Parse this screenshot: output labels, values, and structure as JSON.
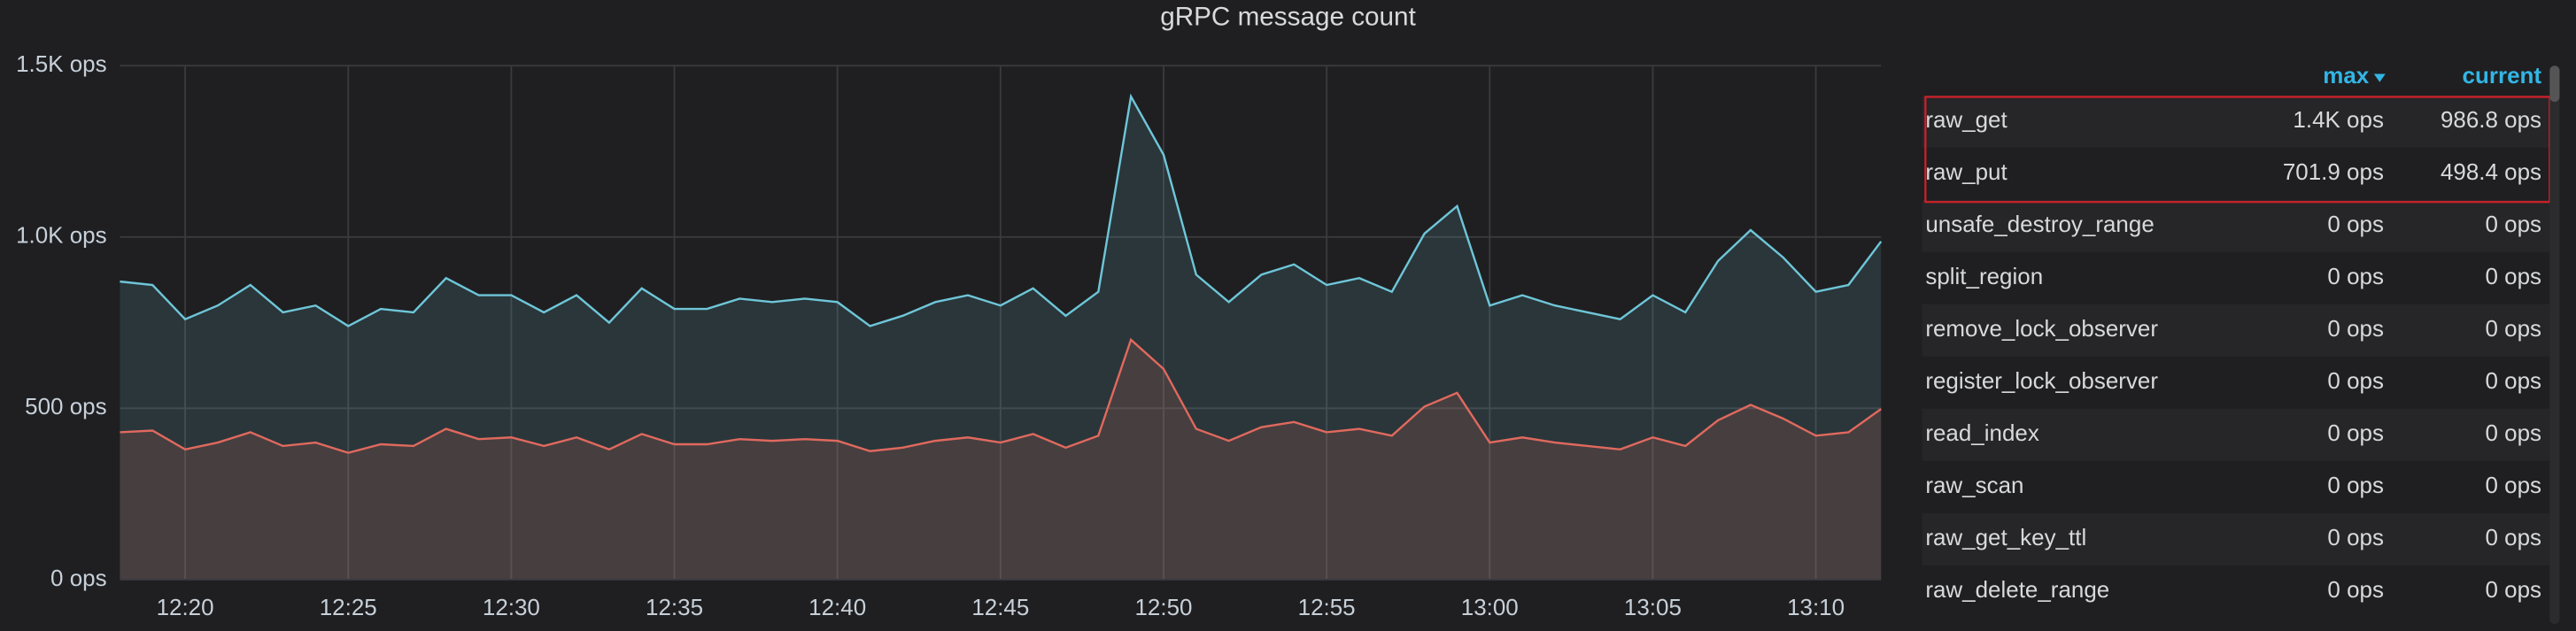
{
  "chart_data": {
    "type": "line",
    "title": "gRPC message count",
    "x": [
      "12:18",
      "12:19",
      "12:20",
      "12:21",
      "12:22",
      "12:23",
      "12:24",
      "12:25",
      "12:26",
      "12:27",
      "12:28",
      "12:29",
      "12:30",
      "12:31",
      "12:32",
      "12:33",
      "12:34",
      "12:35",
      "12:36",
      "12:37",
      "12:38",
      "12:39",
      "12:40",
      "12:41",
      "12:42",
      "12:43",
      "12:44",
      "12:45",
      "12:46",
      "12:47",
      "12:48",
      "12:49",
      "12:50",
      "12:51",
      "12:52",
      "12:53",
      "12:54",
      "12:55",
      "12:56",
      "12:57",
      "12:58",
      "12:59",
      "13:00",
      "13:01",
      "13:02",
      "13:03",
      "13:04",
      "13:05",
      "13:06",
      "13:07",
      "13:08",
      "13:09",
      "13:10",
      "13:11",
      "13:12"
    ],
    "xlim": [
      "12:18",
      "13:12"
    ],
    "xticks": [
      "12:20",
      "12:25",
      "12:30",
      "12:35",
      "12:40",
      "12:45",
      "12:50",
      "12:55",
      "13:00",
      "13:05",
      "13:10"
    ],
    "ylim": [
      0,
      1500
    ],
    "yticks": [
      {
        "value": 0,
        "label": "0 ops"
      },
      {
        "value": 500,
        "label": "500 ops"
      },
      {
        "value": 1000,
        "label": "1.0K ops"
      },
      {
        "value": 1500,
        "label": "1.5K ops"
      }
    ],
    "grid": true,
    "series": [
      {
        "name": "raw_get",
        "color": "#6ec6d8",
        "max": "1.4K ops",
        "current": "986.8 ops",
        "values": [
          870,
          860,
          760,
          800,
          860,
          780,
          800,
          740,
          790,
          780,
          880,
          830,
          830,
          780,
          830,
          750,
          850,
          790,
          790,
          820,
          810,
          820,
          810,
          740,
          770,
          810,
          830,
          800,
          850,
          770,
          840,
          1410,
          1240,
          890,
          810,
          890,
          920,
          860,
          880,
          840,
          1010,
          1090,
          800,
          830,
          800,
          780,
          760,
          830,
          780,
          930,
          1020,
          940,
          840,
          860,
          987
        ]
      },
      {
        "name": "raw_put",
        "color": "#e0695e",
        "max": "701.9 ops",
        "current": "498.4 ops",
        "values": [
          430,
          435,
          380,
          400,
          430,
          390,
          400,
          370,
          395,
          390,
          440,
          410,
          415,
          390,
          415,
          380,
          425,
          395,
          395,
          410,
          405,
          410,
          405,
          375,
          385,
          405,
          415,
          400,
          425,
          385,
          420,
          700,
          615,
          440,
          405,
          445,
          460,
          430,
          440,
          420,
          505,
          545,
          400,
          415,
          400,
          390,
          380,
          415,
          390,
          465,
          510,
          470,
          420,
          430,
          498
        ]
      }
    ],
    "legend_columns": [
      "max",
      "current"
    ],
    "other_rows": [
      {
        "name": "unsafe_destroy_range",
        "max": "0 ops",
        "current": "0 ops"
      },
      {
        "name": "split_region",
        "max": "0 ops",
        "current": "0 ops"
      },
      {
        "name": "remove_lock_observer",
        "max": "0 ops",
        "current": "0 ops"
      },
      {
        "name": "register_lock_observer",
        "max": "0 ops",
        "current": "0 ops"
      },
      {
        "name": "read_index",
        "max": "0 ops",
        "current": "0 ops"
      },
      {
        "name": "raw_scan",
        "max": "0 ops",
        "current": "0 ops"
      },
      {
        "name": "raw_get_key_ttl",
        "max": "0 ops",
        "current": "0 ops"
      },
      {
        "name": "raw_delete_range",
        "max": "0 ops",
        "current": "0 ops"
      }
    ]
  }
}
